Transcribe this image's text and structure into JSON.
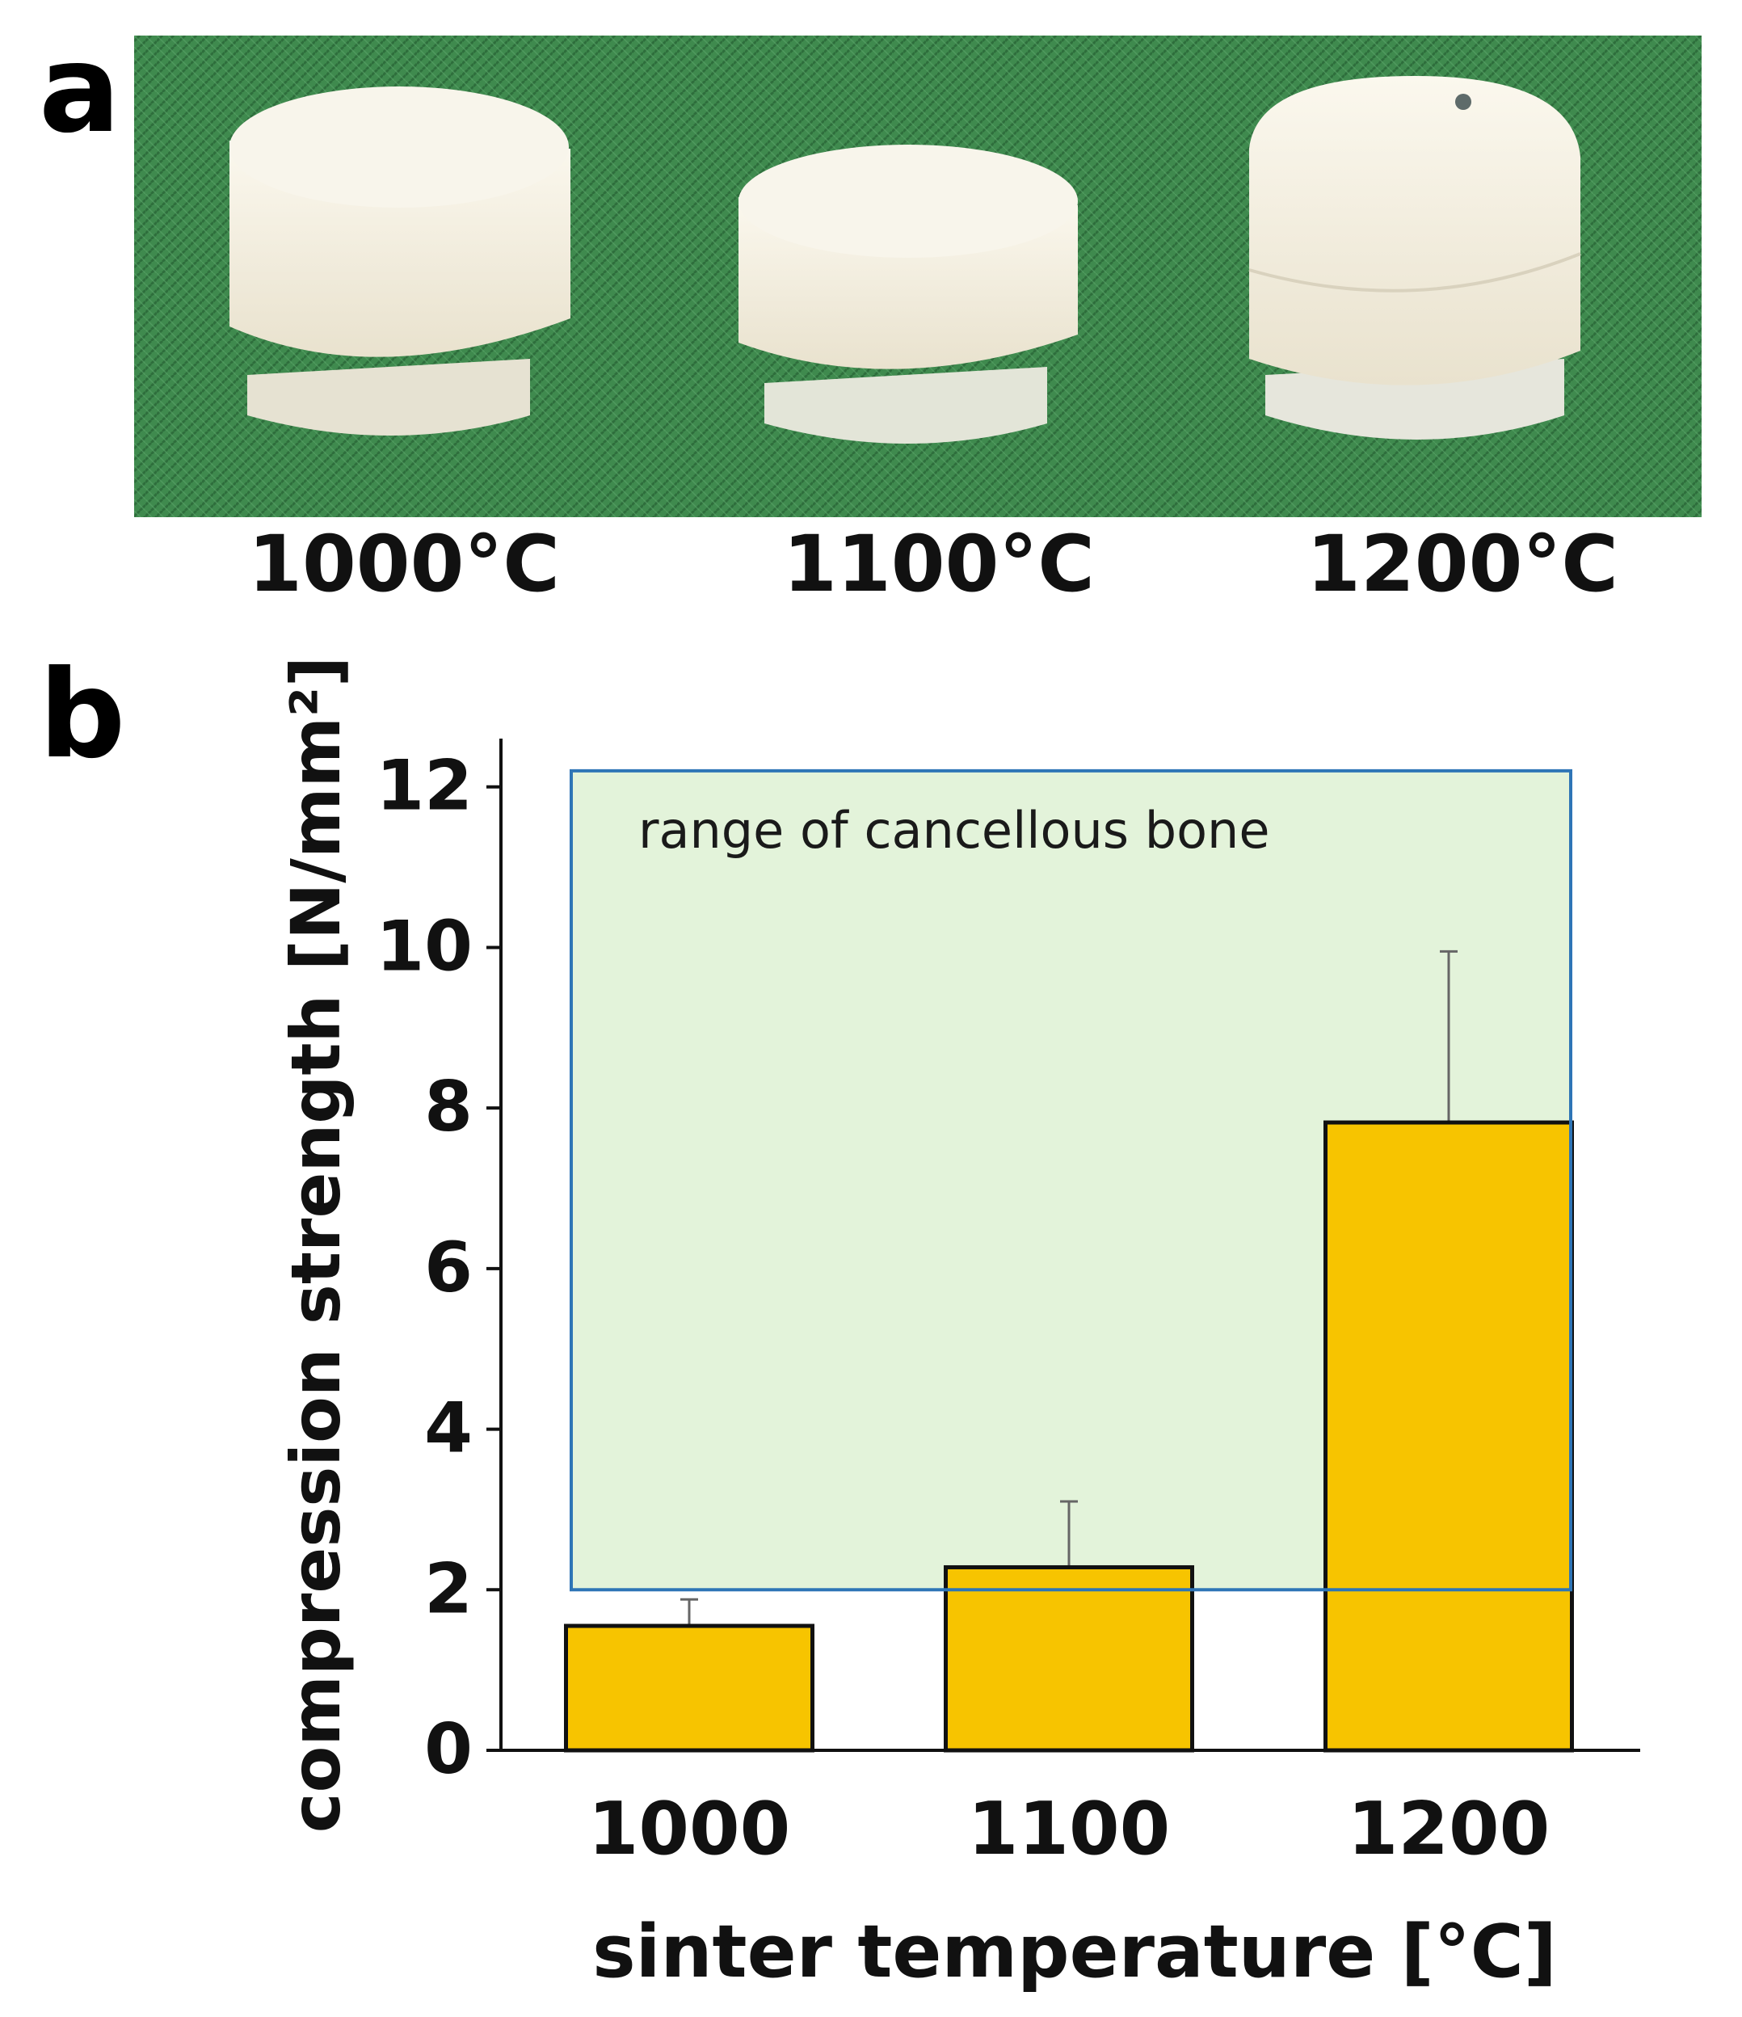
{
  "panel_a": {
    "label": "a",
    "captions": [
      "1000°C",
      "1100°C",
      "1200°C"
    ]
  },
  "panel_b": {
    "label": "b"
  },
  "colors": {
    "bar": "#F7C400",
    "bar_stroke": "#111111",
    "range_fill": "#E3F3DA",
    "range_stroke": "#2E75B6",
    "cloth": "#3F8A4E",
    "sample": "#F1ECDD",
    "error_bar": "#666666"
  },
  "chart_data": {
    "type": "bar",
    "xlabel": "sinter temperature [°C]",
    "ylabel": "compression strength [N/mm²]",
    "categories": [
      "1000",
      "1100",
      "1200"
    ],
    "values": [
      1.55,
      2.28,
      7.82
    ],
    "error_upper": [
      1.88,
      3.1,
      9.95
    ],
    "ylim": [
      0,
      12.4
    ],
    "yticks": [
      0,
      2,
      4,
      6,
      8,
      10,
      12
    ],
    "range_band": {
      "label": "range of cancellous bone",
      "min": 2.0,
      "max": 12.2
    },
    "grid": false,
    "legend": "none"
  }
}
